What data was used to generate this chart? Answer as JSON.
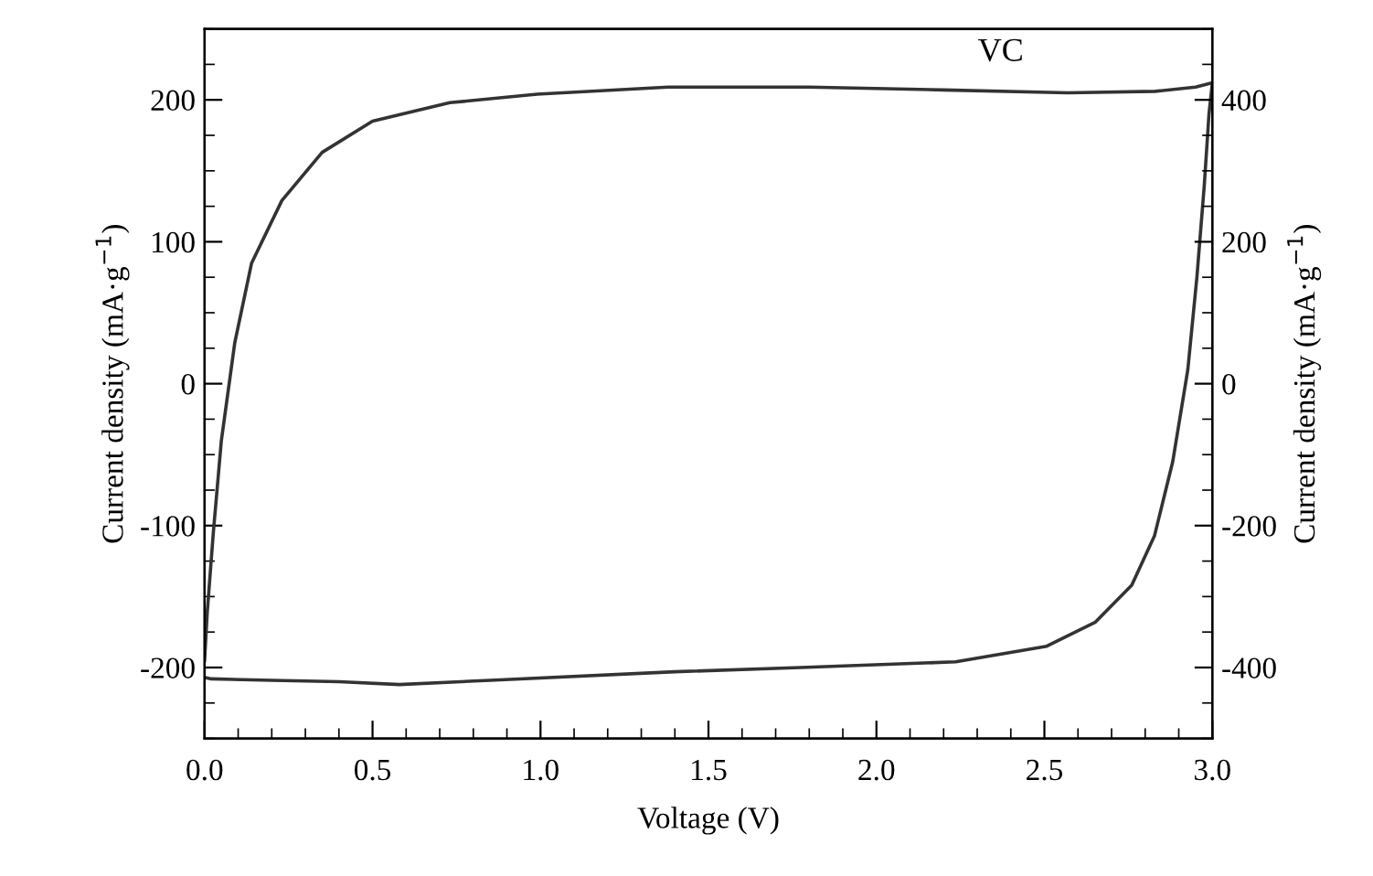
{
  "chart_data": {
    "type": "line",
    "xlabel": "Voltage (V)",
    "ylabel": "Current density (mA·g$^{−1}$)",
    "y2label": "Current density (mA·g$^{−1}$)",
    "annotations": [
      "VC"
    ],
    "series": [
      {
        "color": "#333333",
        "x": [
          0.0,
          0.008,
          0.026,
          0.05,
          0.09,
          0.14,
          0.23,
          0.35,
          0.5,
          0.73,
          0.99,
          1.38,
          1.8,
          2.2,
          2.57,
          2.83,
          2.95,
          3.0,
          2.99,
          2.976,
          2.954,
          2.927,
          2.882,
          2.828,
          2.76,
          2.652,
          2.507,
          2.236,
          1.775,
          1.4,
          0.85,
          0.58,
          0.4,
          0.2,
          0.02,
          0.0
        ],
        "values": [
          -195,
          -161,
          -105,
          -40,
          29,
          85,
          129,
          163,
          185,
          198,
          204,
          209,
          209,
          207,
          205,
          206,
          209,
          212,
          190,
          140,
          75,
          10,
          -55,
          -107,
          -142,
          -168,
          -185,
          -196,
          -200,
          -203,
          -209,
          -212,
          -210,
          -209,
          -208,
          -207
        ]
      }
    ],
    "xlim": [
      0,
      3
    ],
    "xticks": [
      {
        "value": 0,
        "label": "0.0"
      },
      0.5,
      {
        "value": 1,
        "label": "1.0"
      },
      1.5,
      {
        "value": 2,
        "label": "2.0"
      },
      2.5,
      {
        "value": 3,
        "label": "3.0"
      }
    ],
    "ylim": [
      -250,
      250
    ],
    "yticks": [
      -200,
      -100,
      0,
      100,
      200
    ],
    "y2lim": [
      -500,
      500
    ],
    "y2ticks": [
      -400,
      -200,
      0,
      200,
      400
    ],
    "grid": false,
    "legend": false,
    "marker": "none",
    "line_style": "solid"
  }
}
